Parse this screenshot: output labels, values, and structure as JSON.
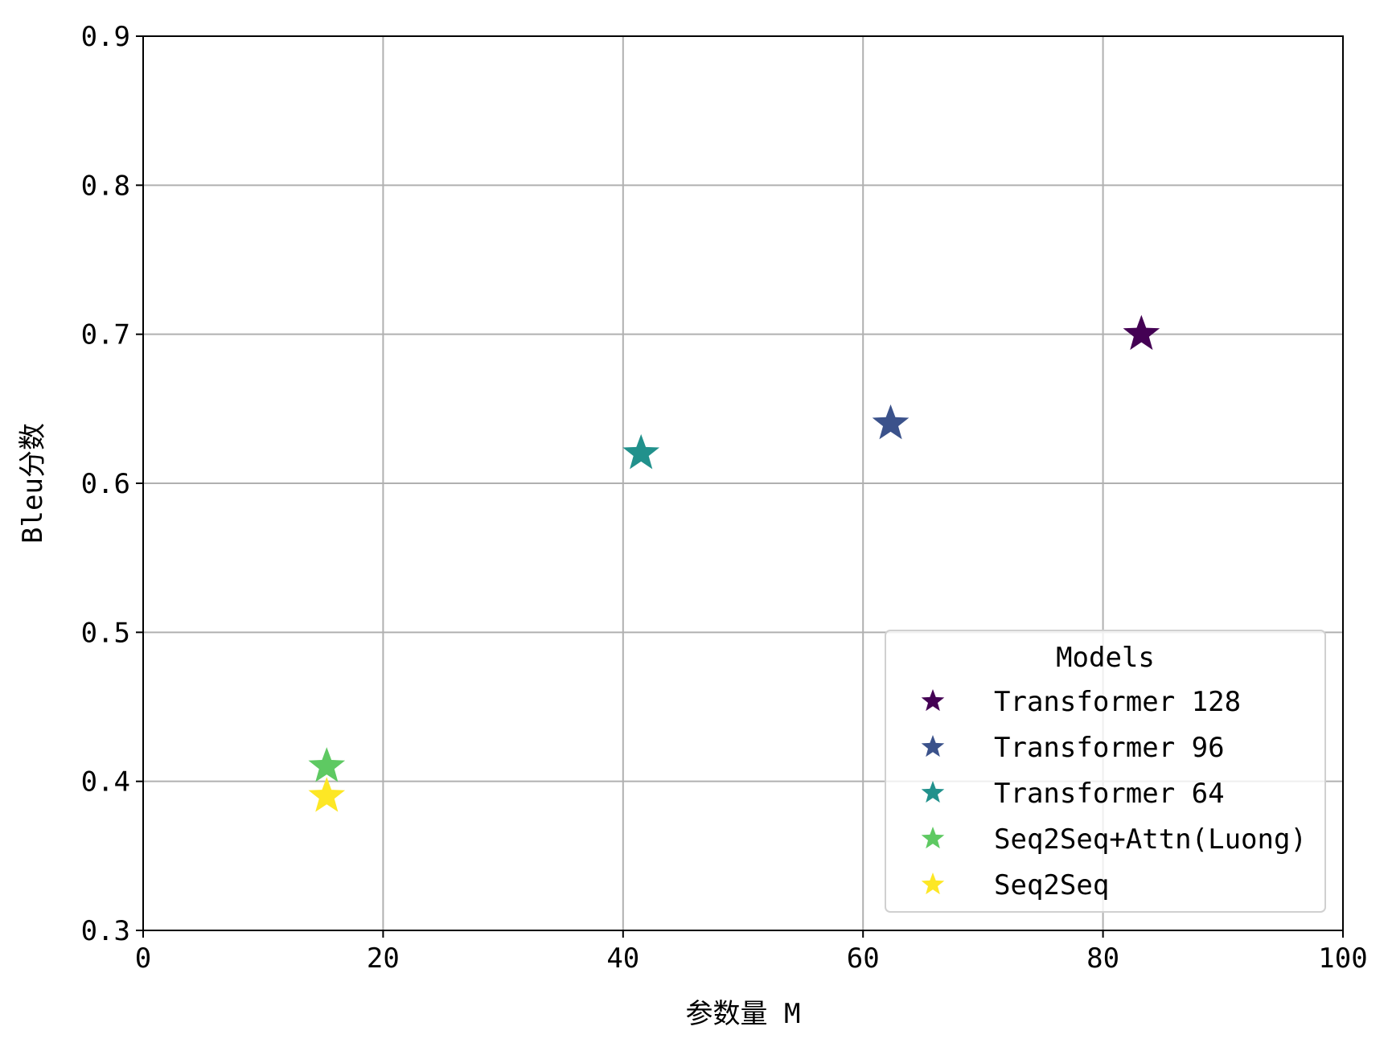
{
  "chart_data": {
    "type": "scatter",
    "title": "",
    "xlabel": "参数量 M",
    "ylabel": "Bleu分数",
    "xlim": [
      0,
      100
    ],
    "ylim": [
      0.3,
      0.9
    ],
    "xticks": [
      0,
      20,
      40,
      60,
      80,
      100
    ],
    "xtick_labels": [
      "0",
      "20",
      "40",
      "60",
      "80",
      "100"
    ],
    "yticks": [
      0.3,
      0.4,
      0.5,
      0.6,
      0.7,
      0.8,
      0.9
    ],
    "ytick_labels": [
      "0.3",
      "0.4",
      "0.5",
      "0.6",
      "0.7",
      "0.8",
      "0.9"
    ],
    "grid": true,
    "marker": "star",
    "legend": {
      "title": "Models",
      "placement": "lower-right"
    },
    "series": [
      {
        "name": "Transformer 128",
        "color": "#440154",
        "x": [
          83.2
        ],
        "y": [
          0.7
        ]
      },
      {
        "name": "Transformer 96",
        "color": "#3b528b",
        "x": [
          62.3
        ],
        "y": [
          0.64
        ]
      },
      {
        "name": "Transformer 64",
        "color": "#21918c",
        "x": [
          41.5
        ],
        "y": [
          0.62
        ]
      },
      {
        "name": "Seq2Seq+Attn(Luong)",
        "color": "#5ec962",
        "x": [
          15.3
        ],
        "y": [
          0.41
        ]
      },
      {
        "name": "Seq2Seq",
        "color": "#fde725",
        "x": [
          15.3
        ],
        "y": [
          0.39
        ]
      }
    ]
  }
}
